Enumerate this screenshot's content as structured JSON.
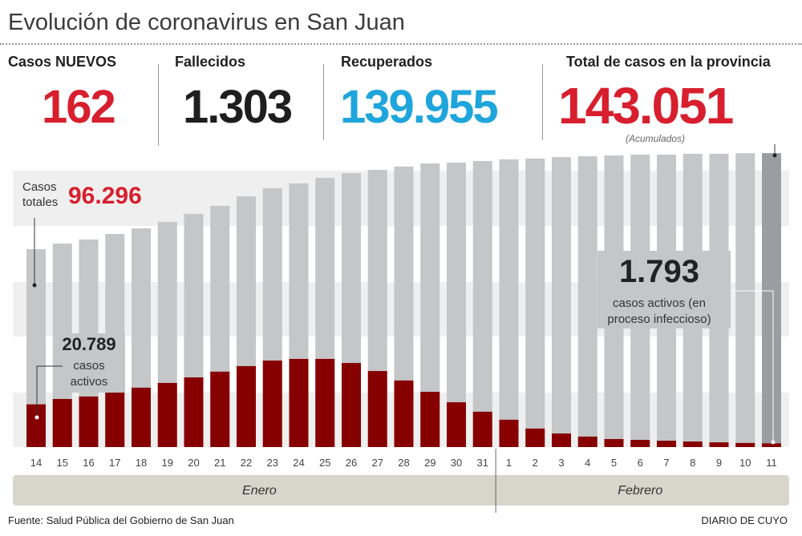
{
  "title": "Evolución de coronavirus en San Juan",
  "stats": {
    "nuevos": {
      "label": "Casos NUEVOS",
      "value": "162",
      "color": "#d71f2e"
    },
    "fallecidos": {
      "label": "Fallecidos",
      "value": "1.303",
      "color": "#1e1e1e"
    },
    "recuperados": {
      "label": "Recuperados",
      "value": "139.955",
      "color": "#1ea5dc"
    },
    "total": {
      "label": "Total de casos en la provincia",
      "value": "143.051",
      "note": "(Acumulados)",
      "color": "#d71f2e"
    }
  },
  "annotations": {
    "casos_totales_label_1": "Casos",
    "casos_totales_label_2": "totales",
    "casos_totales_value": "96.296",
    "activos_start_value": "20.789",
    "activos_start_label_1": "casos",
    "activos_start_label_2": "activos",
    "activos_end_value": "1.793",
    "activos_end_label_1": "casos activos (en",
    "activos_end_label_2": "proceso infeccioso)"
  },
  "chart_data": {
    "type": "bar",
    "title": "",
    "categories": [
      "14",
      "15",
      "16",
      "17",
      "18",
      "19",
      "20",
      "21",
      "22",
      "23",
      "24",
      "25",
      "26",
      "27",
      "28",
      "29",
      "30",
      "31",
      "1",
      "2",
      "3",
      "4",
      "5",
      "6",
      "7",
      "8",
      "9",
      "10",
      "11"
    ],
    "months": [
      {
        "label": "Enero",
        "days": 18
      },
      {
        "label": "Febrero",
        "days": 11
      }
    ],
    "series": [
      {
        "name": "Casos totales",
        "color": "#c4c6c8",
        "values": [
          96296,
          99000,
          101000,
          103700,
          106400,
          109600,
          113500,
          117400,
          122000,
          125900,
          128300,
          131000,
          133300,
          134900,
          136500,
          138000,
          138400,
          139200,
          140000,
          140400,
          141100,
          141500,
          141900,
          142300,
          142300,
          142700,
          142700,
          143000,
          143051
        ]
      },
      {
        "name": "casos activos",
        "color": "#870000",
        "values": [
          20789,
          23400,
          24600,
          26500,
          28900,
          31200,
          33900,
          36700,
          39400,
          42100,
          42900,
          42900,
          40900,
          37000,
          32400,
          26900,
          21800,
          17200,
          13300,
          9000,
          6600,
          5100,
          3900,
          3500,
          3100,
          2700,
          2300,
          2000,
          1793
        ]
      }
    ],
    "highlight_last_color": "#9b9da1",
    "grid": false,
    "legend": "none"
  },
  "footer": {
    "source": "Fuente: Salud Pública del Gobierno de San Juan",
    "brand": "DIARIO DE CUYO"
  }
}
